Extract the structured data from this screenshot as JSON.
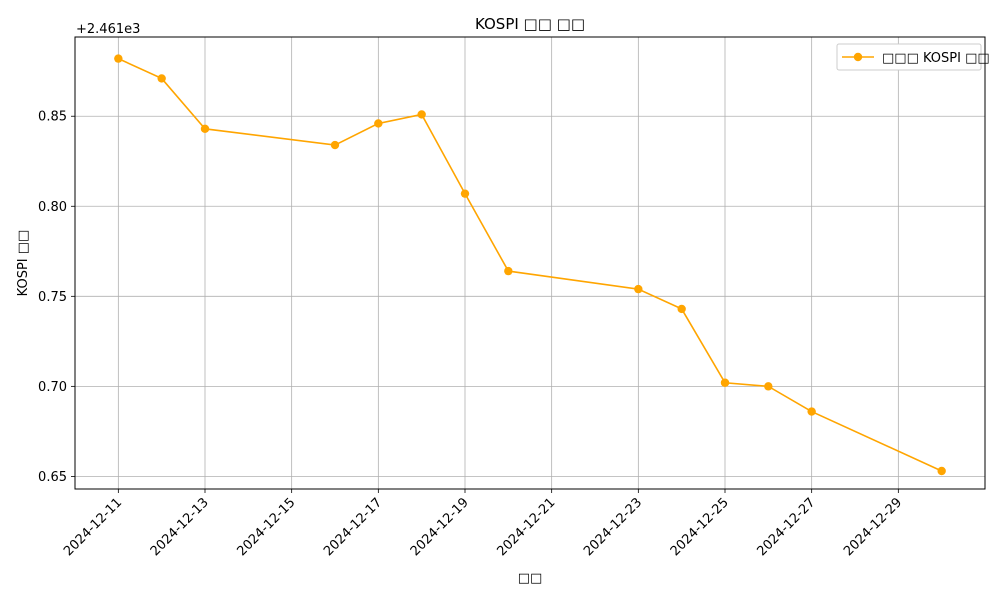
{
  "chart_data": {
    "type": "line",
    "title": "KOSPI □□ □□",
    "xlabel": "□□",
    "ylabel": "KOSPI □□",
    "offset_text": "+2.461e3",
    "x_tick_labels": [
      "2024-12-11",
      "2024-12-13",
      "2024-12-15",
      "2024-12-17",
      "2024-12-19",
      "2024-12-21",
      "2024-12-23",
      "2024-12-25",
      "2024-12-27",
      "2024-12-29"
    ],
    "y_tick_labels": [
      "0.65",
      "0.70",
      "0.75",
      "0.80",
      "0.85"
    ],
    "xlim": [
      "2024-12-10",
      "2024-12-31"
    ],
    "ylim": [
      2461.643,
      2461.894
    ],
    "grid": true,
    "legend_position": "top-right",
    "series": [
      {
        "name": "□□□ KOSPI □□",
        "color": "#FFA500",
        "marker": "circle",
        "x": [
          "2024-12-11",
          "2024-12-12",
          "2024-12-13",
          "2024-12-16",
          "2024-12-17",
          "2024-12-18",
          "2024-12-19",
          "2024-12-20",
          "2024-12-23",
          "2024-12-24",
          "2024-12-25",
          "2024-12-26",
          "2024-12-27",
          "2024-12-30"
        ],
        "y": [
          2461.882,
          2461.871,
          2461.843,
          2461.834,
          2461.846,
          2461.851,
          2461.807,
          2461.764,
          2461.754,
          2461.743,
          2461.702,
          2461.7,
          2461.686,
          2461.653
        ]
      }
    ]
  }
}
